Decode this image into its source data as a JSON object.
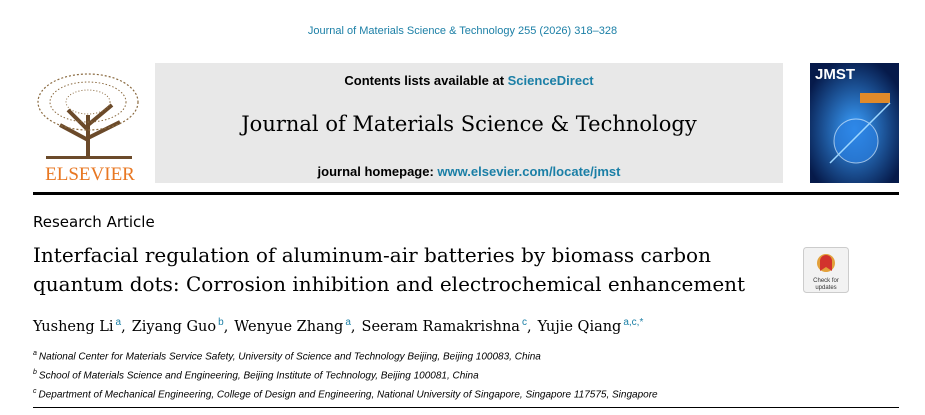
{
  "citation": "Journal of Materials Science & Technology 255 (2026) 318–328",
  "publisher": "ELSEVIER",
  "header": {
    "contents_text": "Contents lists available at ",
    "contents_link": "ScienceDirect",
    "journal_name": "Journal of Materials Science & Technology",
    "homepage_label": "journal homepage: ",
    "homepage_url": "www.elsevier.com/locate/jmst"
  },
  "cover_label": "JMST",
  "article": {
    "type": "Research Article",
    "title": "Interfacial regulation of aluminum-air batteries by biomass carbon quantum dots: Corrosion inhibition and electrochemical enhancement"
  },
  "check_updates": [
    "Check for",
    "updates"
  ],
  "authors": [
    {
      "name": "Yusheng Li",
      "marks": "a"
    },
    {
      "name": "Ziyang Guo",
      "marks": "b"
    },
    {
      "name": "Wenyue Zhang",
      "marks": "a"
    },
    {
      "name": "Seeram Ramakrishna",
      "marks": "c"
    },
    {
      "name": "Yujie Qiang",
      "marks": "a,c,*"
    }
  ],
  "affiliations": [
    {
      "mark": "a",
      "text": "National Center for Materials Service Safety, University of Science and Technology Beijing, Beijing 100083, China"
    },
    {
      "mark": "b",
      "text": "School of Materials Science and Engineering, Beijing Institute of Technology, Beijing 100081, China"
    },
    {
      "mark": "c",
      "text": "Department of Mechanical Engineering, College of Design and Engineering, National University of Singapore, Singapore 117575, Singapore"
    }
  ]
}
